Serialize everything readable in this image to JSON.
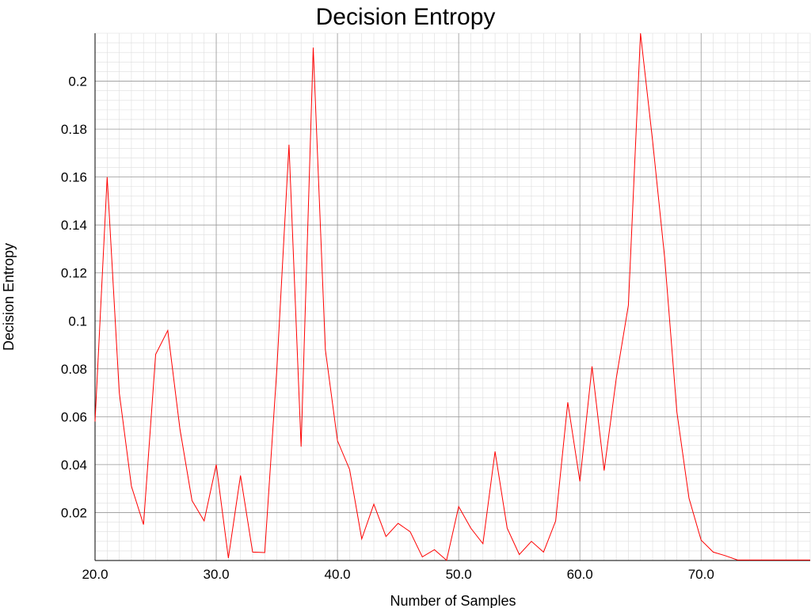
{
  "chart_data": {
    "type": "line",
    "title": "Decision Entropy",
    "xlabel": "Number of Samples",
    "ylabel": "Decision Entropy",
    "xlim": [
      20,
      79
    ],
    "ylim": [
      0,
      0.22
    ],
    "grid": true,
    "x_ticks": [
      20.0,
      30.0,
      40.0,
      50.0,
      60.0,
      70.0
    ],
    "x_tick_labels": [
      "20.0",
      "30.0",
      "40.0",
      "50.0",
      "60.0",
      "70.0"
    ],
    "y_ticks": [
      0.02,
      0.04,
      0.06,
      0.08,
      0.1,
      0.12,
      0.14,
      0.16,
      0.18,
      0.2
    ],
    "y_tick_labels": [
      "0.02",
      "0.04",
      "0.06",
      "0.08",
      "0.1",
      "0.12",
      "0.14",
      "0.16",
      "0.18",
      "0.2"
    ],
    "colors": {
      "line": "#ff0000",
      "grid_major": "#999999",
      "grid_minor": "#dddddd"
    },
    "series": [
      {
        "x": [
          20,
          21,
          22,
          23,
          24,
          25,
          26,
          27,
          28,
          29,
          30,
          31,
          32,
          33,
          34,
          35,
          36,
          37,
          38,
          39,
          40,
          41,
          42,
          43,
          44,
          45,
          46,
          47,
          48,
          49,
          50,
          51,
          52,
          53,
          54,
          55,
          56,
          57,
          58,
          59,
          60,
          61,
          62,
          63,
          64,
          65,
          66,
          67,
          68,
          69,
          70,
          71,
          72,
          73,
          74,
          75,
          76,
          77,
          78,
          79
        ],
        "values": [
          0.058,
          0.16,
          0.07,
          0.031,
          0.015,
          0.086,
          0.096,
          0.055,
          0.025,
          0.0165,
          0.04,
          0.001,
          0.0355,
          0.0035,
          0.0033,
          0.08,
          0.1735,
          0.0475,
          0.214,
          0.088,
          0.05,
          0.038,
          0.009,
          0.0235,
          0.01,
          0.0155,
          0.012,
          0.0015,
          0.0045,
          0.0001,
          0.0225,
          0.0135,
          0.007,
          0.0455,
          0.0135,
          0.0025,
          0.008,
          0.0035,
          0.0165,
          0.066,
          0.033,
          0.081,
          0.0375,
          0.076,
          0.1065,
          0.22,
          0.175,
          0.126,
          0.062,
          0.026,
          0.0085,
          0.0035,
          0.002,
          0.0002,
          0.0002,
          0.0002,
          0.0002,
          0.0002,
          0.0002,
          0.0002
        ]
      }
    ]
  }
}
